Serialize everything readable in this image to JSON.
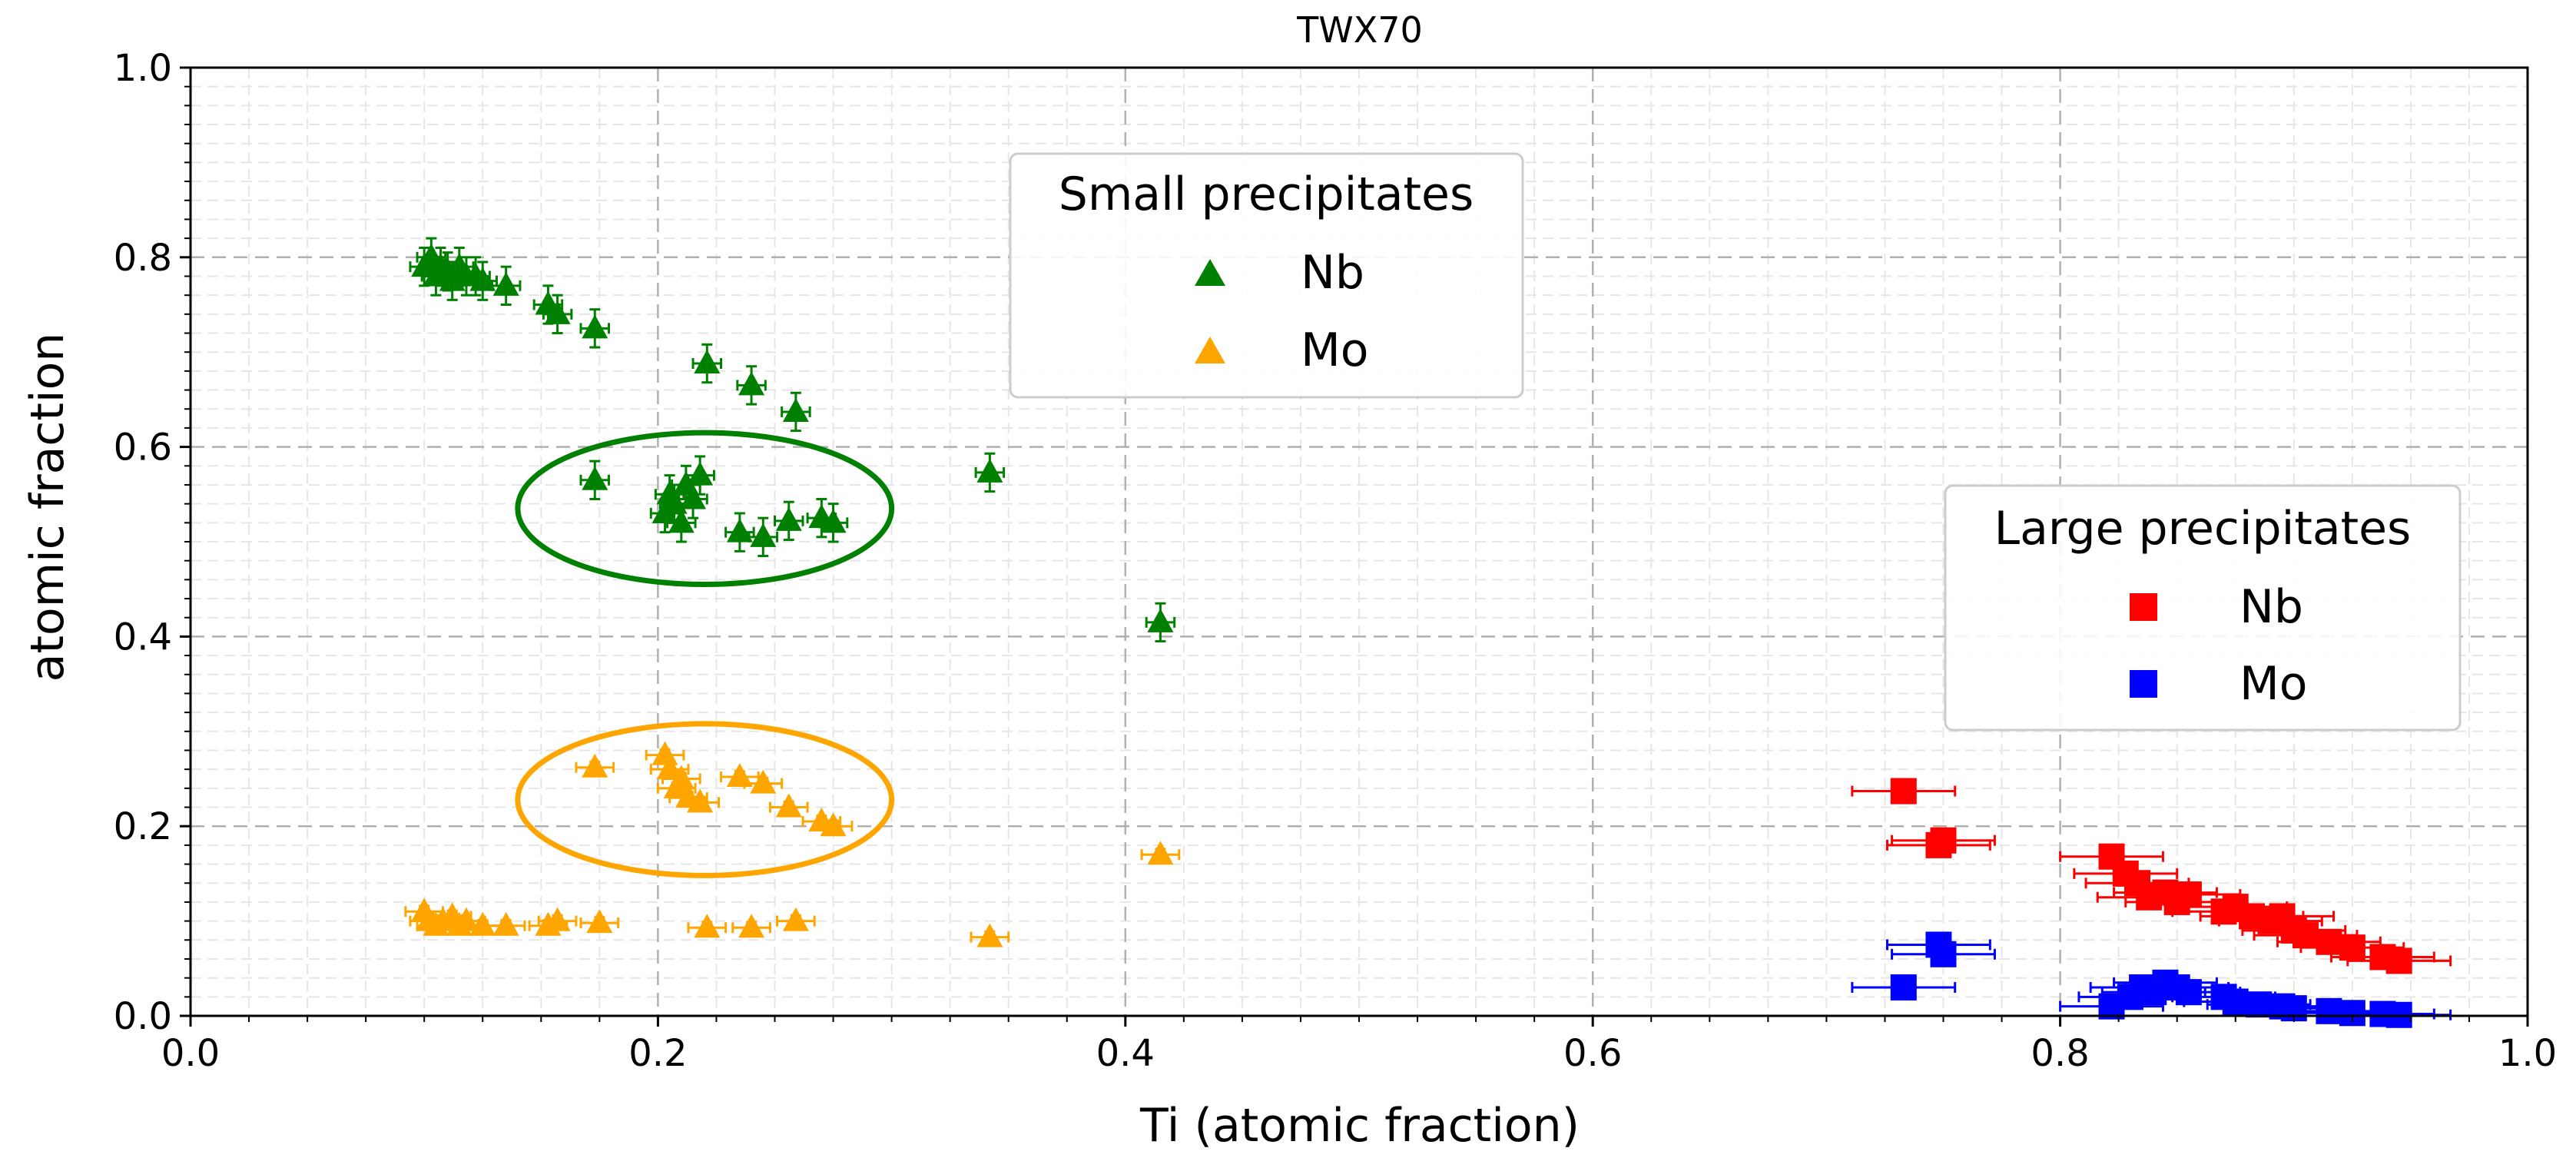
{
  "chart_data": {
    "type": "scatter",
    "title": "TWX70",
    "xlabel": "Ti (atomic fraction)",
    "ylabel": "atomic fraction",
    "xlim": [
      0.0,
      1.0
    ],
    "ylim": [
      0.0,
      1.0
    ],
    "xticks": [
      "0.0",
      "0.2",
      "0.4",
      "0.6",
      "0.8",
      "1.0"
    ],
    "yticks": [
      "0.0",
      "0.2",
      "0.4",
      "0.6",
      "0.8",
      "1.0"
    ],
    "grid": true,
    "colors": {
      "green": "#008000",
      "orange": "#FFA500",
      "red": "#FF0000",
      "blue": "#0000FF"
    },
    "legends": [
      {
        "title": "Small precipitates",
        "placement": "upper-center",
        "entries": [
          {
            "label": "Nb",
            "marker": "triangle",
            "color": "#008000"
          },
          {
            "label": "Mo",
            "marker": "triangle",
            "color": "#FFA500"
          }
        ]
      },
      {
        "title": "Large precipitates",
        "placement": "center-right",
        "entries": [
          {
            "label": "Nb",
            "marker": "square",
            "color": "#FF0000"
          },
          {
            "label": "Mo",
            "marker": "square",
            "color": "#0000FF"
          }
        ]
      }
    ],
    "series": [
      {
        "name": "Small precipitates Nb",
        "marker": "triangle",
        "color": "#008000",
        "xerr": 0.006,
        "yerr": 0.02,
        "points": [
          [
            0.1,
            0.79
          ],
          [
            0.103,
            0.8
          ],
          [
            0.105,
            0.78
          ],
          [
            0.107,
            0.79
          ],
          [
            0.11,
            0.785
          ],
          [
            0.112,
            0.775
          ],
          [
            0.115,
            0.79
          ],
          [
            0.118,
            0.78
          ],
          [
            0.122,
            0.78
          ],
          [
            0.125,
            0.775
          ],
          [
            0.135,
            0.77
          ],
          [
            0.153,
            0.75
          ],
          [
            0.157,
            0.74
          ],
          [
            0.173,
            0.725
          ],
          [
            0.221,
            0.688
          ],
          [
            0.24,
            0.665
          ],
          [
            0.259,
            0.637
          ],
          [
            0.173,
            0.565
          ],
          [
            0.203,
            0.53
          ],
          [
            0.205,
            0.55
          ],
          [
            0.207,
            0.54
          ],
          [
            0.21,
            0.52
          ],
          [
            0.212,
            0.56
          ],
          [
            0.215,
            0.545
          ],
          [
            0.218,
            0.57
          ],
          [
            0.235,
            0.51
          ],
          [
            0.245,
            0.505
          ],
          [
            0.256,
            0.522
          ],
          [
            0.27,
            0.525
          ],
          [
            0.275,
            0.52
          ],
          [
            0.342,
            0.573
          ],
          [
            0.415,
            0.415
          ]
        ]
      },
      {
        "name": "Small precipitates Mo",
        "marker": "triangle",
        "color": "#FFA500",
        "xerr": 0.008,
        "yerr": 0.006,
        "points": [
          [
            0.1,
            0.11
          ],
          [
            0.102,
            0.1
          ],
          [
            0.105,
            0.095
          ],
          [
            0.108,
            0.1
          ],
          [
            0.112,
            0.105
          ],
          [
            0.115,
            0.095
          ],
          [
            0.118,
            0.1
          ],
          [
            0.125,
            0.095
          ],
          [
            0.135,
            0.095
          ],
          [
            0.153,
            0.095
          ],
          [
            0.157,
            0.1
          ],
          [
            0.175,
            0.098
          ],
          [
            0.221,
            0.093
          ],
          [
            0.24,
            0.093
          ],
          [
            0.259,
            0.1
          ],
          [
            0.173,
            0.262
          ],
          [
            0.203,
            0.275
          ],
          [
            0.205,
            0.26
          ],
          [
            0.208,
            0.24
          ],
          [
            0.21,
            0.25
          ],
          [
            0.213,
            0.23
          ],
          [
            0.218,
            0.225
          ],
          [
            0.235,
            0.252
          ],
          [
            0.245,
            0.245
          ],
          [
            0.256,
            0.22
          ],
          [
            0.27,
            0.205
          ],
          [
            0.275,
            0.2
          ],
          [
            0.342,
            0.083
          ],
          [
            0.415,
            0.17
          ]
        ]
      },
      {
        "name": "Large precipitates Nb",
        "marker": "square",
        "color": "#FF0000",
        "xerr": 0.022,
        "yerr": 0.004,
        "points": [
          [
            0.733,
            0.237
          ],
          [
            0.748,
            0.18
          ],
          [
            0.75,
            0.185
          ],
          [
            0.822,
            0.168
          ],
          [
            0.828,
            0.15
          ],
          [
            0.833,
            0.14
          ],
          [
            0.838,
            0.125
          ],
          [
            0.845,
            0.13
          ],
          [
            0.85,
            0.12
          ],
          [
            0.855,
            0.128
          ],
          [
            0.87,
            0.11
          ],
          [
            0.875,
            0.115
          ],
          [
            0.882,
            0.105
          ],
          [
            0.89,
            0.1
          ],
          [
            0.895,
            0.105
          ],
          [
            0.9,
            0.09
          ],
          [
            0.905,
            0.085
          ],
          [
            0.915,
            0.078
          ],
          [
            0.925,
            0.072
          ],
          [
            0.938,
            0.062
          ],
          [
            0.945,
            0.058
          ]
        ]
      },
      {
        "name": "Large precipitates Mo",
        "marker": "square",
        "color": "#0000FF",
        "xerr": 0.022,
        "yerr": 0.004,
        "points": [
          [
            0.733,
            0.03
          ],
          [
            0.748,
            0.075
          ],
          [
            0.75,
            0.065
          ],
          [
            0.822,
            0.01
          ],
          [
            0.83,
            0.02
          ],
          [
            0.835,
            0.03
          ],
          [
            0.84,
            0.025
          ],
          [
            0.845,
            0.035
          ],
          [
            0.85,
            0.03
          ],
          [
            0.855,
            0.025
          ],
          [
            0.87,
            0.02
          ],
          [
            0.875,
            0.015
          ],
          [
            0.885,
            0.012
          ],
          [
            0.895,
            0.01
          ],
          [
            0.9,
            0.008
          ],
          [
            0.915,
            0.005
          ],
          [
            0.925,
            0.003
          ],
          [
            0.938,
            0.002
          ],
          [
            0.945,
            0.001
          ]
        ]
      }
    ],
    "annotations": [
      {
        "type": "ellipse",
        "color": "#008000",
        "center": [
          0.22,
          0.535
        ],
        "radii": [
          0.08,
          0.08
        ]
      },
      {
        "type": "ellipse",
        "color": "#FFA500",
        "center": [
          0.22,
          0.228
        ],
        "radii": [
          0.08,
          0.08
        ]
      }
    ]
  }
}
